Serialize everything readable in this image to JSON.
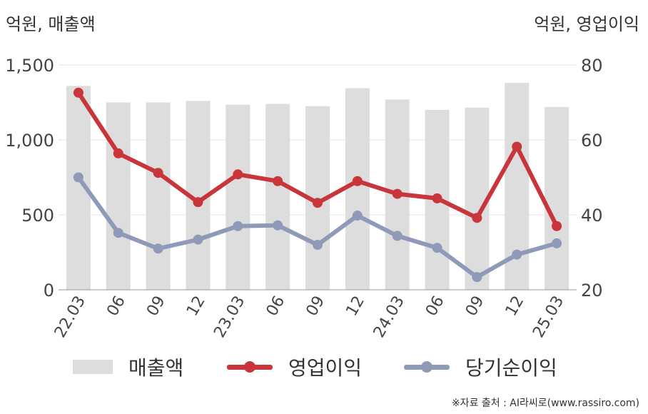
{
  "units": {
    "left": "억원, 매출액",
    "right": "억원, 영업이익"
  },
  "chart_data": {
    "type": "bar",
    "categories": [
      "22.03",
      "06",
      "09",
      "12",
      "23.03",
      "06",
      "09",
      "12",
      "24.03",
      "06",
      "09",
      "12",
      "25.03"
    ],
    "y_left": {
      "ylim": [
        0,
        1500
      ],
      "ticks": [
        0,
        500,
        1000,
        1500
      ],
      "tick_labels": [
        "0",
        "500",
        "1,000",
        "1,500"
      ]
    },
    "y_right": {
      "ylim": [
        20,
        80
      ],
      "ticks": [
        20,
        40,
        60,
        80
      ],
      "tick_labels": [
        "20",
        "40",
        "60",
        "80"
      ]
    },
    "grid": true,
    "legend_position": "bottom",
    "series": [
      {
        "name": "매출액",
        "type": "bar",
        "axis": "left",
        "color": "#dddddd",
        "values": [
          1360,
          1250,
          1250,
          1260,
          1235,
          1240,
          1225,
          1345,
          1270,
          1200,
          1215,
          1380,
          1220
        ]
      },
      {
        "name": "영업이익",
        "type": "line",
        "axis": "right",
        "color": "#c8353a",
        "values": [
          72.6,
          56.4,
          51.2,
          43.4,
          50.8,
          49.0,
          43.2,
          49.0,
          45.6,
          44.4,
          39.2,
          58.2,
          37.0
        ]
      },
      {
        "name": "당기순이익",
        "type": "line",
        "axis": "right",
        "color": "#8f9ab8",
        "values": [
          50.0,
          35.2,
          31.0,
          33.4,
          37.0,
          37.2,
          32.0,
          39.8,
          34.4,
          31.2,
          23.4,
          29.4,
          32.4
        ]
      }
    ]
  },
  "source": "※자료 출처 : AI라씨로(www.rassiro.com)"
}
